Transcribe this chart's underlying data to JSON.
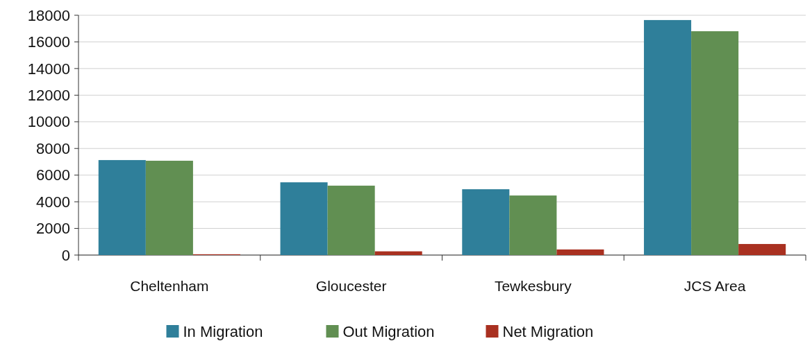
{
  "chart_data": {
    "type": "bar",
    "categories": [
      "Cheltenham",
      "Gloucester",
      "Tewkesbury",
      "JCS Area"
    ],
    "series": [
      {
        "name": "In Migration",
        "color": "#2f7f9a",
        "values": [
          7130,
          5460,
          4940,
          17640
        ]
      },
      {
        "name": "Out Migration",
        "color": "#618f52",
        "values": [
          7080,
          5210,
          4470,
          16800
        ]
      },
      {
        "name": "Net Migration",
        "color": "#a93020",
        "values": [
          60,
          280,
          420,
          830
        ]
      }
    ],
    "ylim": [
      0,
      18000
    ],
    "yticks": [
      0,
      2000,
      4000,
      6000,
      8000,
      10000,
      12000,
      14000,
      16000,
      18000
    ],
    "grid": "y",
    "legend": "bottom"
  }
}
